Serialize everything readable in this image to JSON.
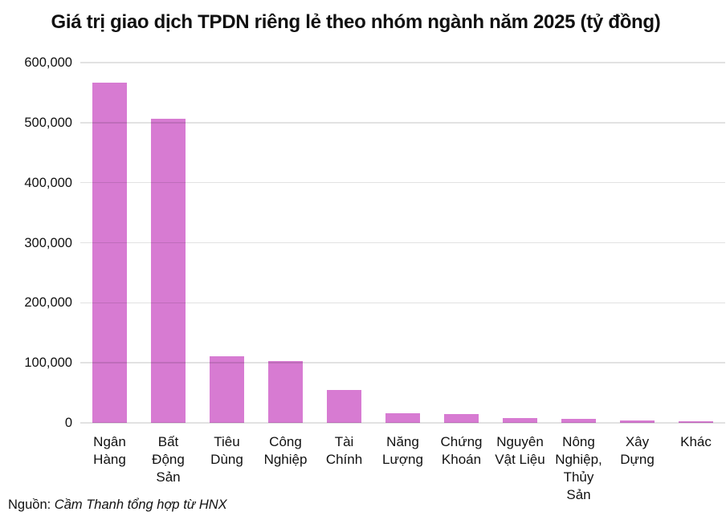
{
  "source": {
    "prefix": "Nguồn: ",
    "text": "Cầm Thanh tổng hợp từ HNX"
  },
  "colors": {
    "bar": "#d77bd2",
    "grid": "rgba(0,0,0,0.115)",
    "text": "#111111",
    "background": "#ffffff"
  },
  "chart_data": {
    "type": "bar",
    "title": "Giá trị giao dịch TPDN riêng lẻ theo nhóm ngành năm 2025 (tỷ đồng)",
    "categories": [
      "Ngân Hàng",
      "Bất Động Sản",
      "Tiêu Dùng",
      "Công Nghiệp",
      "Tài Chính",
      "Năng Lượng",
      "Chứng Khoán",
      "Nguyên Vật Liệu",
      "Nông Nghiệp, Thủy Sản",
      "Xây Dựng",
      "Khác"
    ],
    "category_display_lines": [
      "Ngân\nHàng",
      "Bất\nĐộng\nSản",
      "Tiêu\nDùng",
      "Công\nNghiệp",
      "Tài\nChính",
      "Năng\nLượng",
      "Chứng\nKhoán",
      "Nguyên\nVật Liệu",
      "Nông\nNghiệp,\nThủy\nSản",
      "Xây\nDựng",
      "Khác"
    ],
    "values": [
      566000,
      507000,
      111000,
      103000,
      55000,
      16000,
      14500,
      7500,
      7000,
      4500,
      3000
    ],
    "xlabel": "",
    "ylabel": "",
    "ylim": [
      0,
      600000
    ],
    "yticks": [
      0,
      100000,
      200000,
      300000,
      400000,
      500000,
      600000
    ],
    "ytick_labels": [
      "0",
      "100,000",
      "200,000",
      "300,000",
      "400,000",
      "500,000",
      "600,000"
    ],
    "grid": "horizontal",
    "legend": false
  }
}
